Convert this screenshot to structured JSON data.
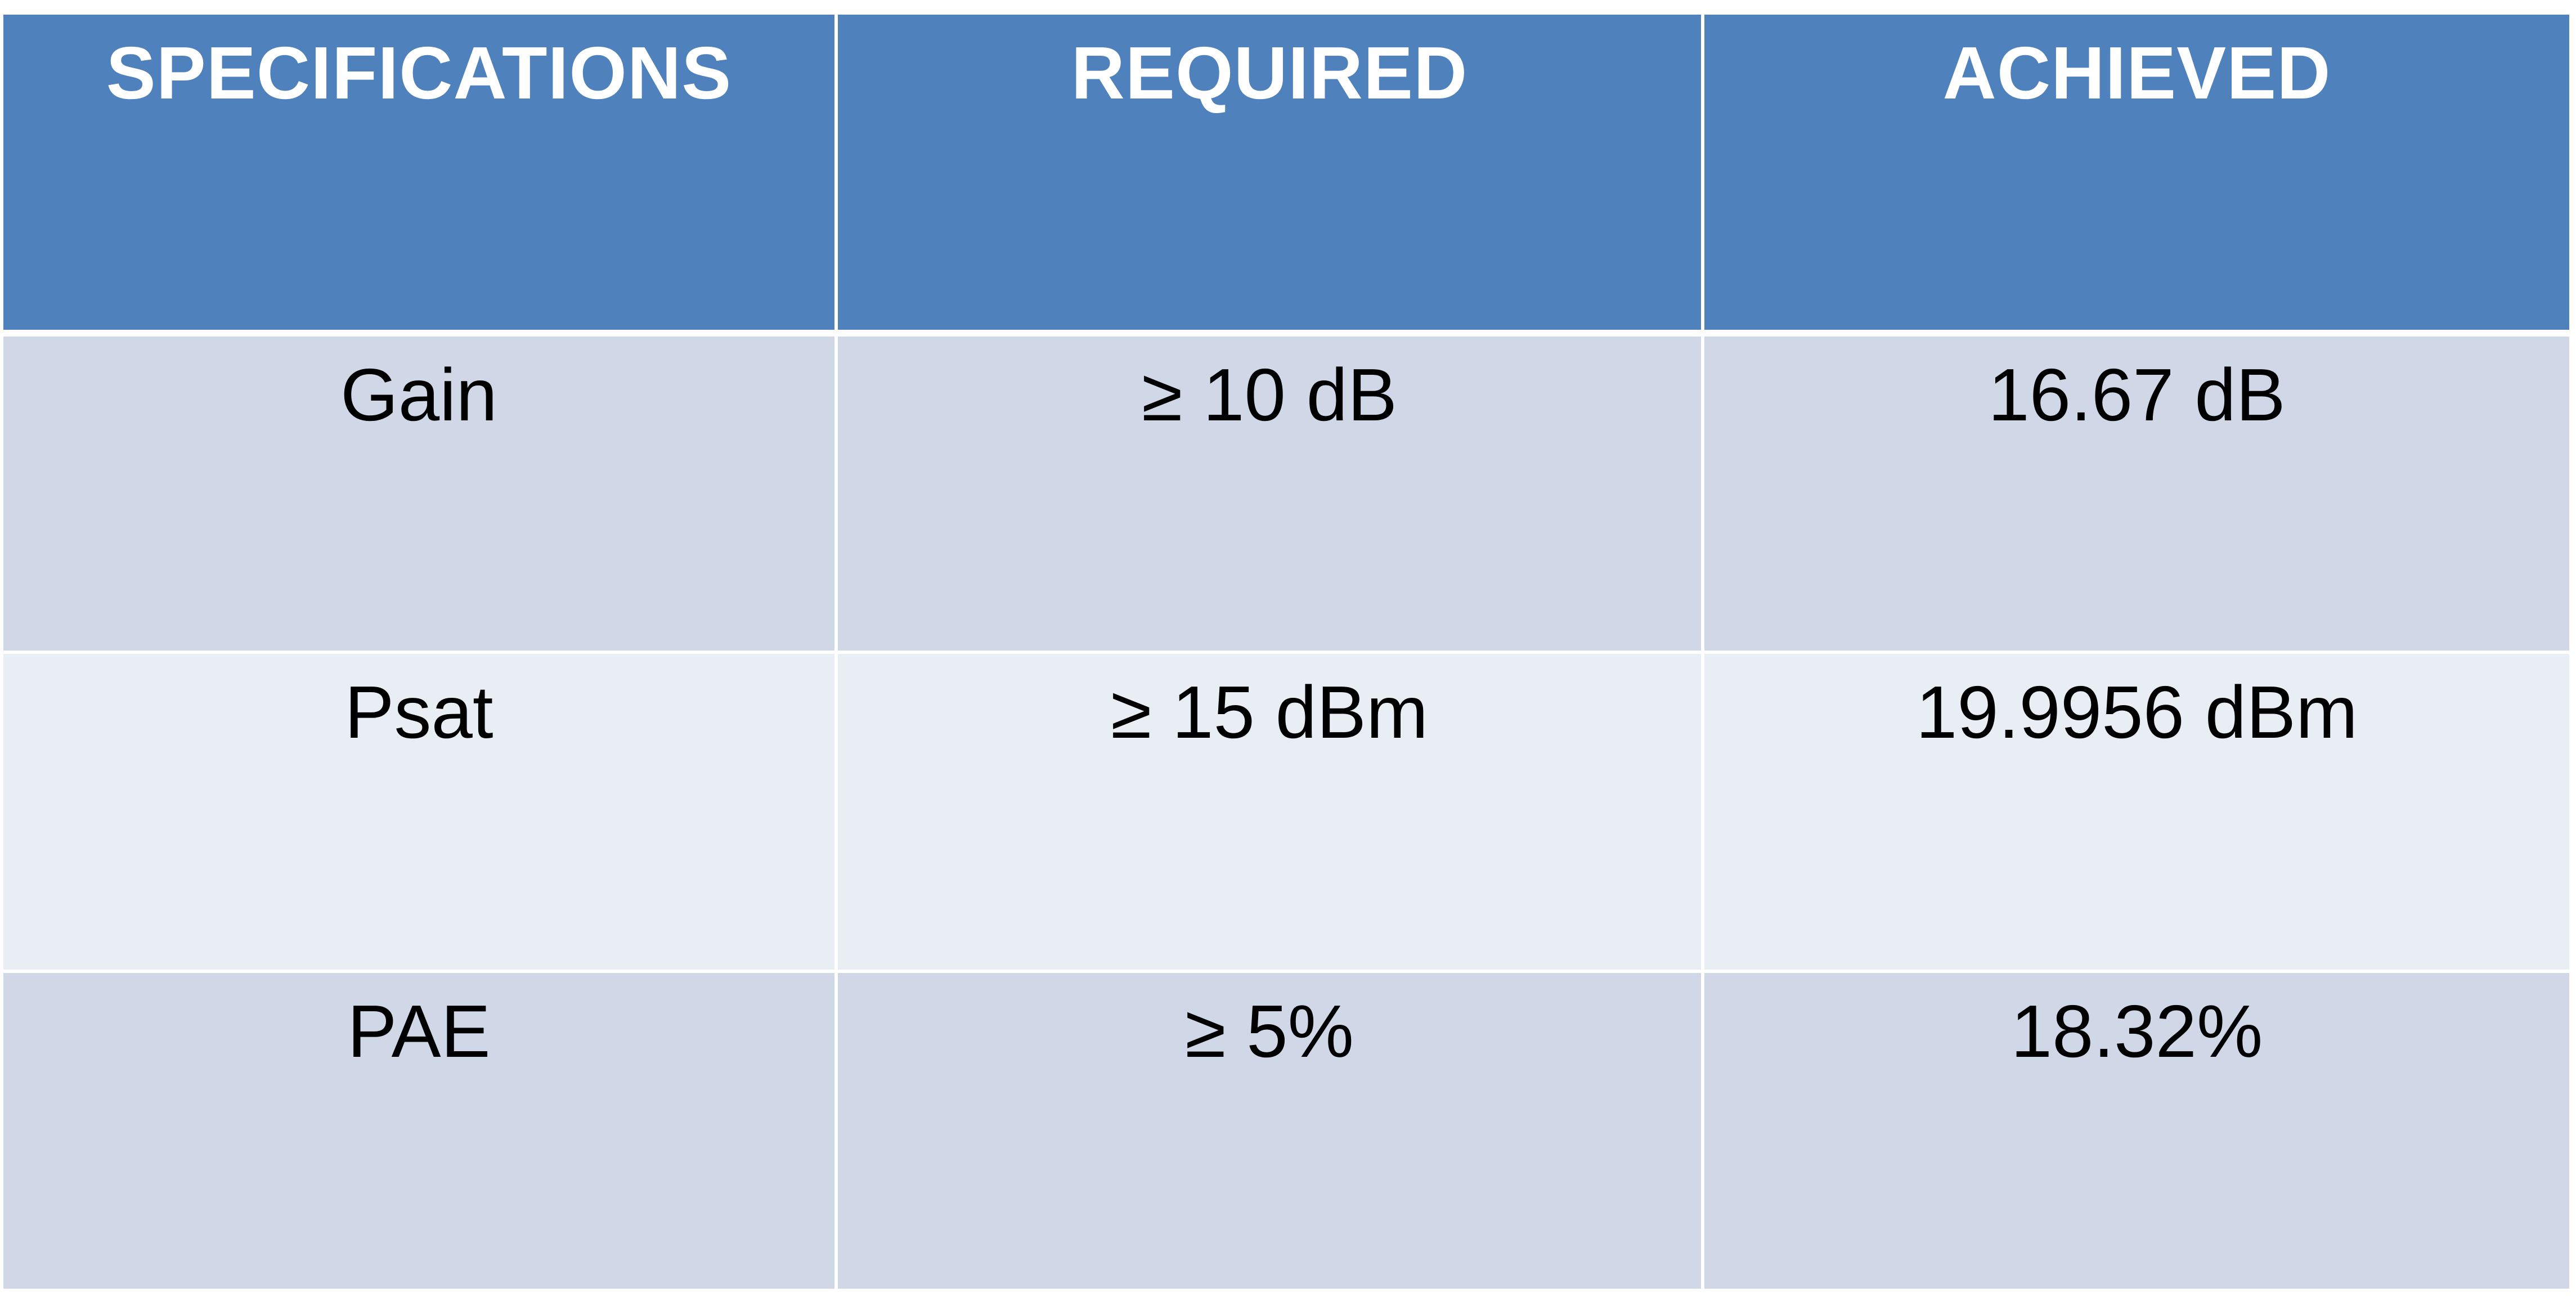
{
  "table": {
    "headers": [
      "SPECIFICATIONS",
      "REQUIRED",
      "ACHIEVED"
    ],
    "rows": [
      [
        "Gain",
        "≥ 10 dB",
        "16.67 dB"
      ],
      [
        "Psat",
        "≥ 15 dBm",
        "19.9956 dBm"
      ],
      [
        "PAE",
        "≥ 5%",
        "18.32%"
      ]
    ]
  },
  "colors": {
    "header_bg": "#4f81bd",
    "header_text": "#ffffff",
    "row_odd_bg": "#d0d8e8",
    "row_even_bg": "#e9edf4",
    "cell_text": "#000000"
  }
}
